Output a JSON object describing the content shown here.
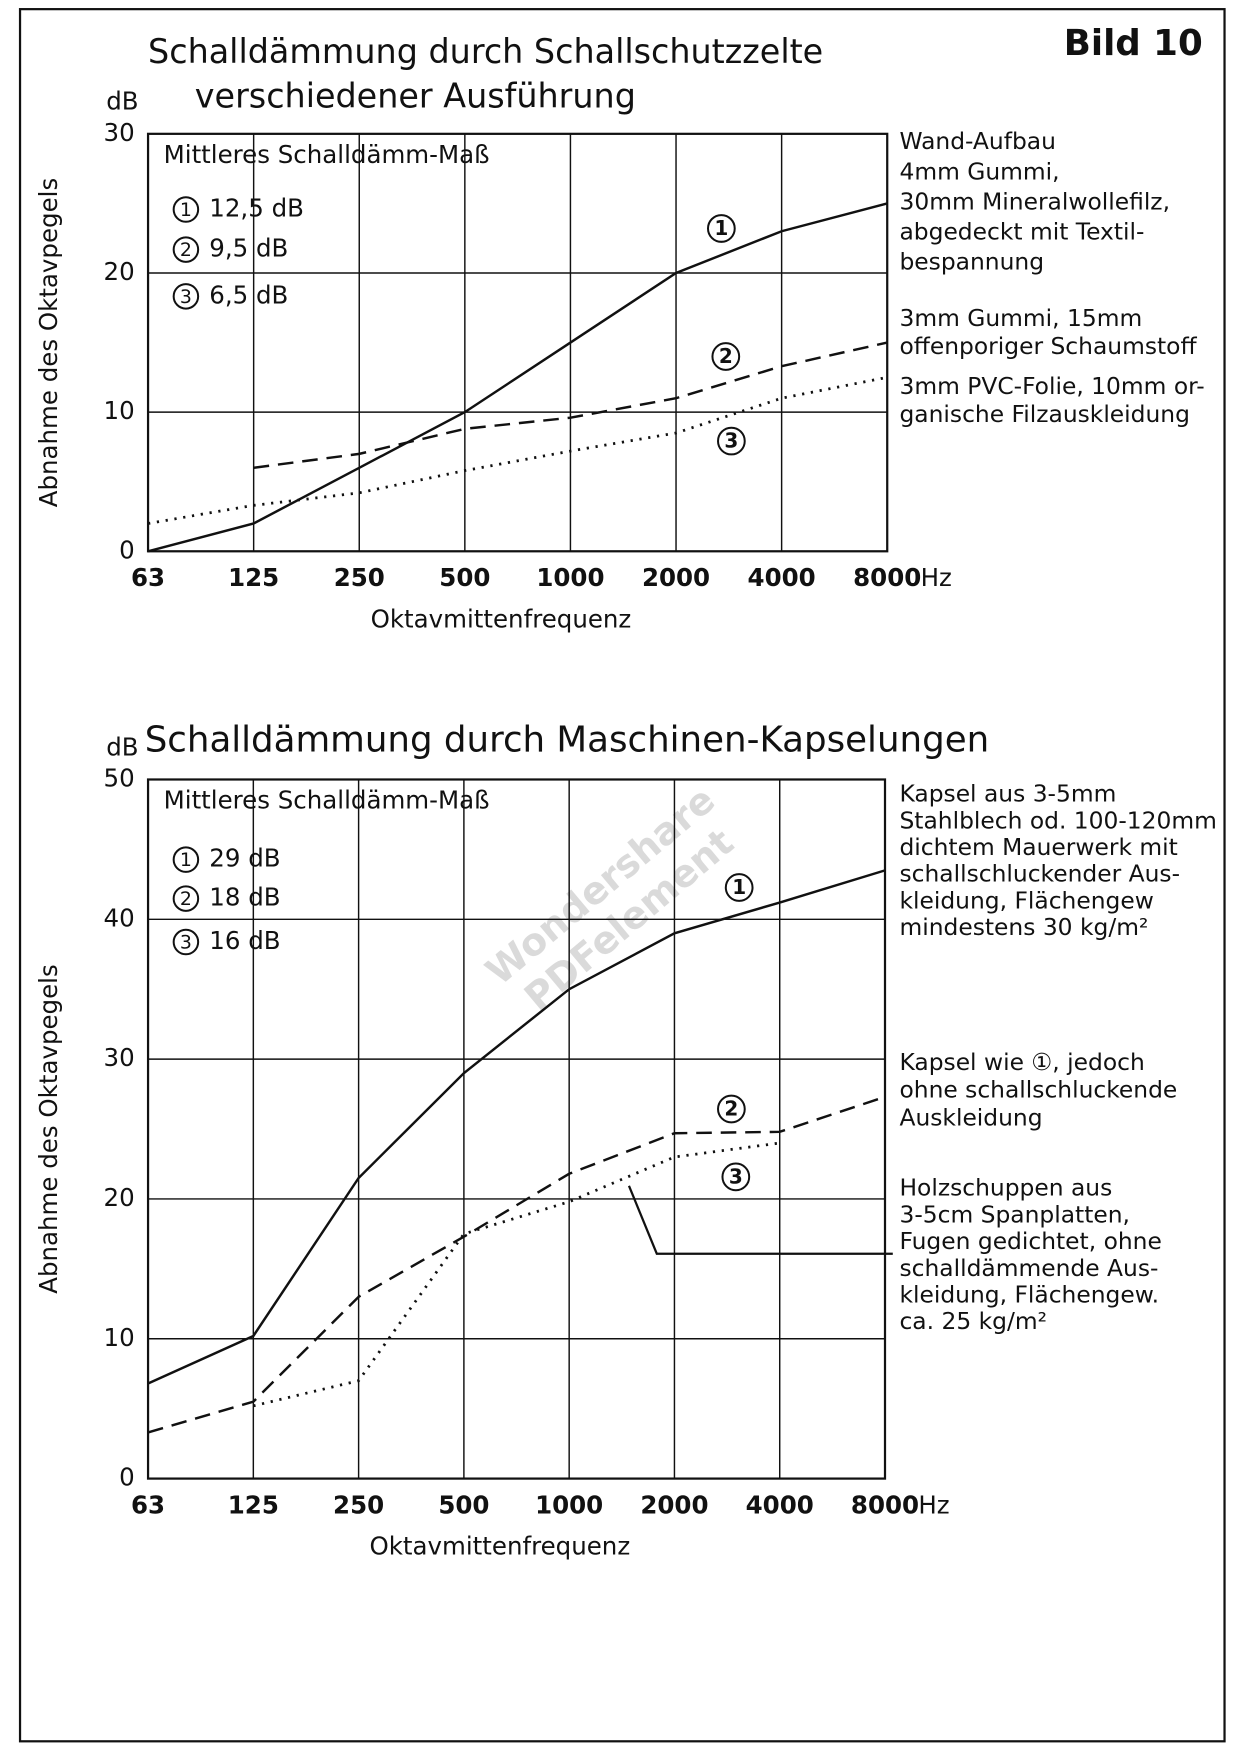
{
  "header": {
    "figure_label": "Bild 10",
    "watermark": [
      "Wondershare",
      "PDFelement"
    ]
  },
  "chart_data": [
    {
      "type": "line",
      "title": [
        "Schalldämmung durch Schallschutzzelte",
        "verschiedener Ausführung"
      ],
      "y_unit": "dB",
      "y_label": "Abnahme des Oktavpegels",
      "x_label": "Oktavmittenfrequenz",
      "x_unit": "Hz",
      "legend_title": "Mittleres Schalldämm-Maß",
      "categories": [
        "63",
        "125",
        "250",
        "500",
        "1000",
        "2000",
        "4000",
        "8000"
      ],
      "ylim": [
        0,
        30
      ],
      "yticks": [
        0,
        10,
        20,
        30
      ],
      "grid": true,
      "series": [
        {
          "name": "1",
          "mean_label": "12,5 dB",
          "color": "#111",
          "style": "solid",
          "values": [
            0,
            2,
            6,
            10,
            15,
            20,
            23,
            25
          ],
          "description": [
            "Wand-Aufbau",
            "4mm Gummi,",
            "30mm Mineralwollefilz,",
            "abgedeckt mit Textil-",
            "bespannung"
          ]
        },
        {
          "name": "2",
          "mean_label": "9,5 dB",
          "color": "#111",
          "style": "dashed",
          "values": [
            null,
            6,
            7,
            8.8,
            9.6,
            11,
            13.3,
            15
          ],
          "description": [
            "3mm Gummi, 15mm",
            "offenporiger Schaumstoff"
          ]
        },
        {
          "name": "3",
          "mean_label": "6,5 dB",
          "color": "#111",
          "style": "dotted",
          "values": [
            2,
            3.3,
            4.2,
            5.8,
            7.2,
            8.5,
            11,
            12.5
          ],
          "description": [
            "3mm PVC-Folie, 10mm or-",
            "ganische Filzauskleidung"
          ]
        }
      ]
    },
    {
      "type": "line",
      "title": [
        "Schalldämmung durch Maschinen-Kapselungen"
      ],
      "y_unit": "dB",
      "y_label": "Abnahme des Oktavpegels",
      "x_label": "Oktavmittenfrequenz",
      "x_unit": "Hz",
      "legend_title": "Mittleres Schalldämm-Maß",
      "categories": [
        "63",
        "125",
        "250",
        "500",
        "1000",
        "2000",
        "4000",
        "8000"
      ],
      "ylim": [
        0,
        50
      ],
      "yticks": [
        0,
        10,
        20,
        30,
        40,
        50
      ],
      "grid": true,
      "series": [
        {
          "name": "1",
          "mean_label": "29 dB",
          "color": "#111",
          "style": "solid",
          "values": [
            6.8,
            10.2,
            21.5,
            29,
            35,
            39,
            41.2,
            43.5
          ],
          "description": [
            "Kapsel aus 3-5mm",
            "Stahlblech od. 100-120mm",
            "dichtem Mauerwerk mit",
            "schallschluckender Aus-",
            "kleidung, Flächengew",
            "mindestens 30 kg/m²"
          ]
        },
        {
          "name": "2",
          "mean_label": "18 dB",
          "color": "#111",
          "style": "dashed",
          "values": [
            3.3,
            5.5,
            13,
            17.3,
            21.8,
            24.7,
            24.8,
            27.3
          ],
          "description": [
            "Kapsel wie ①, jedoch",
            "ohne schallschluckende",
            "Auskleidung"
          ]
        },
        {
          "name": "3",
          "mean_label": "16 dB",
          "color": "#111",
          "style": "dotted",
          "values": [
            null,
            5.2,
            7,
            17.5,
            19.8,
            23,
            24,
            null
          ],
          "description": [
            "Holzschuppen aus",
            "3-5cm Spanplatten,",
            "Fugen gedichtet, ohne",
            "schalldämmende Aus-",
            "kleidung, Flächengew.",
            "ca. 25 kg/m²"
          ]
        }
      ]
    }
  ]
}
